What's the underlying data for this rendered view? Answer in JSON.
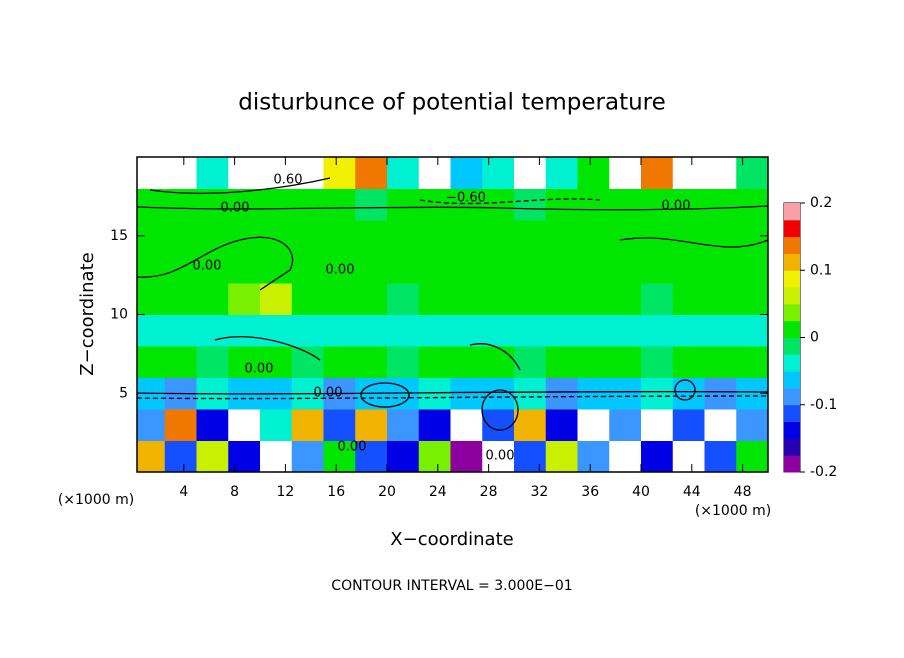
{
  "chart_data": {
    "type": "contour",
    "title": "disturbunce of potential temperature",
    "x_label": "X−coordinate",
    "y_label": "Z−coordinate",
    "x_unit_left": "(×1000 m)",
    "x_unit_right": "(×1000 m)",
    "footer": "CONTOUR INTERVAL = 3.000E−01",
    "xlim": [
      0,
      50
    ],
    "ylim": [
      0,
      20
    ],
    "xticks": [
      4,
      8,
      12,
      16,
      20,
      24,
      28,
      32,
      36,
      40,
      44,
      48
    ],
    "yticks": [
      5,
      10,
      15
    ],
    "clim": [
      -0.2,
      0.2
    ],
    "cticks": [
      -0.2,
      -0.1,
      0,
      0.1,
      0.2
    ],
    "colors": [
      "#8c00a0",
      "#2800b4",
      "#0000e6",
      "#1450ff",
      "#3c96ff",
      "#00c8ff",
      "#00f0d2",
      "#00e664",
      "#00e600",
      "#78f000",
      "#c8f000",
      "#f0f000",
      "#f0b400",
      "#f07800",
      "#f00000",
      "#f8a0a8"
    ],
    "over_color": "#ffffff",
    "contour_labels": [
      "0.60",
      "−0.60",
      "0.00",
      "0.00",
      "0.00",
      "0.00",
      "0.00",
      "0.00",
      "0.00",
      "0.00"
    ],
    "z": [
      [
        0.12,
        -0.12,
        0.05,
        -0.15,
        0.3,
        -0.1,
        0.0,
        -0.12,
        -0.15,
        0.03,
        -0.18,
        0.3,
        -0.12,
        0.05,
        -0.1,
        0.3,
        -0.15,
        0.3,
        -0.12,
        0.0
      ],
      [
        -0.1,
        0.15,
        -0.15,
        0.3,
        -0.05,
        0.1,
        -0.12,
        0.12,
        -0.08,
        -0.15,
        0.3,
        -0.12,
        0.1,
        -0.15,
        0.3,
        -0.1,
        0.3,
        -0.12,
        0.3,
        -0.1
      ],
      [
        -0.06,
        -0.08,
        -0.05,
        -0.07,
        -0.06,
        -0.05,
        -0.08,
        -0.06,
        -0.07,
        -0.05,
        -0.06,
        -0.07,
        -0.05,
        -0.08,
        -0.06,
        -0.07,
        -0.05,
        -0.06,
        -0.08,
        -0.06
      ],
      [
        0,
        0.01,
        -0.01,
        0.02,
        0,
        -0.01,
        0.01,
        0,
        -0.02,
        0.01,
        0,
        0.02,
        -0.01,
        0,
        0.01,
        0,
        -0.01,
        0,
        0.01,
        0
      ],
      [
        -0.04,
        -0.03,
        -0.05,
        -0.03,
        -0.04,
        -0.05,
        -0.03,
        -0.04,
        -0.05,
        -0.03,
        -0.04,
        -0.05,
        -0.03,
        -0.04,
        -0.05,
        -0.03,
        -0.04,
        -0.05,
        -0.03,
        -0.04
      ],
      [
        0.01,
        0,
        0.02,
        0.03,
        0.05,
        0,
        0.01,
        0,
        -0.01,
        0.01,
        0,
        0.02,
        0,
        0.01,
        0,
        0,
        -0.01,
        0,
        0.01,
        0
      ],
      [
        0.01,
        0.01,
        0,
        0.01,
        0.01,
        0.01,
        0,
        0.01,
        0.01,
        0,
        0.01,
        0.01,
        0.01,
        0,
        0.01,
        0.01,
        0,
        0.01,
        0.01,
        0.01
      ],
      [
        0.01,
        0,
        0.01,
        0.01,
        0,
        0.01,
        0.01,
        0.01,
        0,
        0.01,
        0.01,
        0,
        0.01,
        0.01,
        0.01,
        0,
        0.01,
        0.01,
        0,
        0.01
      ],
      [
        0.02,
        0.01,
        0,
        0.01,
        0.02,
        0,
        0.01,
        -0.02,
        0,
        0.01,
        0,
        0.01,
        -0.01,
        0,
        0.01,
        0.02,
        0,
        0.01,
        0,
        0.01
      ],
      [
        0.3,
        0.3,
        -0.05,
        0.3,
        0.3,
        0.3,
        0.08,
        0.15,
        -0.04,
        0.3,
        -0.06,
        -0.05,
        0.3,
        -0.04,
        0.02,
        0.3,
        0.15,
        0.3,
        0.3,
        -0.02
      ]
    ]
  }
}
